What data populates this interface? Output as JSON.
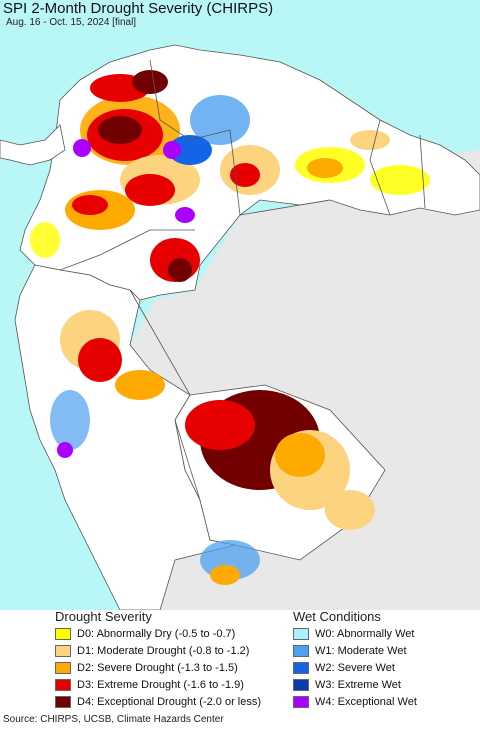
{
  "header": {
    "title": "SPI 2-Month Drought Severity (CHIRPS)",
    "subtitle": "Aug. 16 - Oct. 15, 2024 [final]"
  },
  "map": {
    "colors": {
      "ocean": "#b9f6f6",
      "land_outside": "#e8e8e8",
      "land_normal": "#ffffff",
      "border": "#555555"
    }
  },
  "legend": {
    "drought": {
      "title": "Drought Severity",
      "items": [
        {
          "label": "D0: Abnormally Dry (-0.5 to -0.7)",
          "color": "#ffff00"
        },
        {
          "label": "D1: Moderate Drought (-0.8 to -1.2)",
          "color": "#fcd37f"
        },
        {
          "label": "D2: Severe Drought (-1.3 to -1.5)",
          "color": "#ffaa00"
        },
        {
          "label": "D3: Extreme Drought (-1.6 to -1.9)",
          "color": "#e60000"
        },
        {
          "label": "D4: Exceptional Drought (-2.0 or less)",
          "color": "#730000"
        }
      ]
    },
    "wet": {
      "title": "Wet Conditions",
      "items": [
        {
          "label": "W0: Abnormally Wet",
          "color": "#aaf0ff"
        },
        {
          "label": "W1: Moderate Wet",
          "color": "#4ea0f0"
        },
        {
          "label": "W2: Severe Wet",
          "color": "#1464e6"
        },
        {
          "label": "W3: Extreme Wet",
          "color": "#0a3caa"
        },
        {
          "label": "W4: Exceptional Wet",
          "color": "#aa00ff"
        }
      ]
    }
  },
  "footer": {
    "source": "Source: CHIRPS, UCSB, Climate Hazards Center"
  }
}
